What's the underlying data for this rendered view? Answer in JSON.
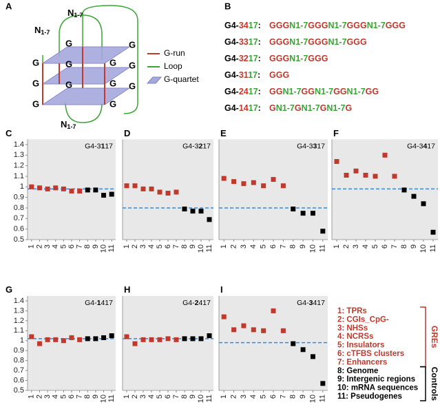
{
  "panel_a": {
    "panel": "A",
    "loops": [
      "N1-7",
      "N1-7",
      "N1-7"
    ],
    "g_labels": [
      "G",
      "G",
      "G",
      "G",
      "G",
      "G",
      "G",
      "G",
      "G",
      "G",
      "G",
      "G"
    ],
    "legend": [
      "G-run",
      "Loop",
      "G-quartet"
    ]
  },
  "panel_b": {
    "panel": "B",
    "lines": [
      {
        "label": "G4-3417:",
        "sequence": "GGGN1-7GGGN1-7GGGN1-7GGG"
      },
      {
        "label": "G4-3317:",
        "sequence": "GGGN1-7GGGN1-7GGG"
      },
      {
        "label": "G4-3217:",
        "sequence": "GGGN1-7GGG"
      },
      {
        "label": "G4-3117:",
        "sequence": "GGG"
      },
      {
        "label": "G4-2417:",
        "sequence": "GGN1-7GGN1-7GGN1-7GG"
      },
      {
        "label": "G4-1417:",
        "sequence": "GN1-7GN1-7GN1-7G"
      }
    ]
  },
  "chart_data": [
    {
      "type": "scatter",
      "panel": "C",
      "title": [
        "G4-3",
        "1",
        "17"
      ],
      "categories": [
        "1",
        "2",
        "3",
        "4",
        "5",
        "6",
        "7",
        "8",
        "9",
        "10",
        "11"
      ],
      "values": [
        1.0,
        0.99,
        0.98,
        0.99,
        0.98,
        0.96,
        0.96,
        0.97,
        0.97,
        0.92,
        0.93
      ],
      "reference": 0.98,
      "ylim": [
        0.5,
        1.45
      ],
      "yticks": [
        0.5,
        0.6,
        0.7,
        0.8,
        0.9,
        1,
        1.1,
        1.2,
        1.3,
        1.4
      ]
    },
    {
      "type": "scatter",
      "panel": "D",
      "title": [
        "G4-3",
        "2",
        "17"
      ],
      "categories": [
        "1",
        "2",
        "3",
        "4",
        "5",
        "6",
        "7",
        "8",
        "9",
        "10",
        "11"
      ],
      "values": [
        1.01,
        1.01,
        0.98,
        0.98,
        0.95,
        0.94,
        0.95,
        0.79,
        0.77,
        0.77,
        0.69
      ],
      "reference": 0.8,
      "ylim": [
        0.5,
        1.45
      ]
    },
    {
      "type": "scatter",
      "panel": "E",
      "title": [
        "G4-3",
        "3",
        "17"
      ],
      "categories": [
        "1",
        "2",
        "3",
        "4",
        "5",
        "6",
        "7",
        "8",
        "9",
        "10",
        "11"
      ],
      "values": [
        1.08,
        1.05,
        1.03,
        1.04,
        1.01,
        1.07,
        1.01,
        0.79,
        0.75,
        0.75,
        0.58
      ],
      "reference": 0.8,
      "ylim": [
        0.5,
        1.45
      ]
    },
    {
      "type": "scatter",
      "panel": "F",
      "title": [
        "G4-3",
        "4",
        "17"
      ],
      "categories": [
        "1",
        "2",
        "3",
        "4",
        "5",
        "6",
        "7",
        "8",
        "9",
        "10",
        "11"
      ],
      "values": [
        1.24,
        1.11,
        1.15,
        1.11,
        1.1,
        1.3,
        1.1,
        0.97,
        0.91,
        0.84,
        0.57
      ],
      "reference": 0.98,
      "ylim": [
        0.5,
        1.45
      ]
    },
    {
      "type": "scatter",
      "panel": "G",
      "title": [
        "G4-",
        "1",
        "417"
      ],
      "categories": [
        "1",
        "2",
        "3",
        "4",
        "5",
        "6",
        "7",
        "8",
        "9",
        "10",
        "11"
      ],
      "values": [
        1.04,
        0.97,
        1.01,
        1.01,
        1.0,
        1.03,
        1.01,
        1.02,
        1.02,
        1.03,
        1.05
      ],
      "reference": 1.02,
      "ylim": [
        0.5,
        1.45
      ],
      "yticks": [
        0.5,
        0.6,
        0.7,
        0.8,
        0.9,
        1,
        1.1,
        1.2,
        1.3,
        1.4
      ]
    },
    {
      "type": "scatter",
      "panel": "H",
      "title": [
        "G4-",
        "2",
        "417"
      ],
      "categories": [
        "1",
        "2",
        "3",
        "4",
        "5",
        "6",
        "7",
        "8",
        "9",
        "10",
        "11"
      ],
      "values": [
        1.04,
        0.97,
        1.01,
        1.01,
        1.01,
        1.02,
        1.01,
        1.02,
        1.02,
        1.02,
        1.05
      ],
      "reference": 1.02,
      "ylim": [
        0.5,
        1.45
      ]
    },
    {
      "type": "scatter",
      "panel": "I",
      "title": [
        "G4-",
        "3",
        "417"
      ],
      "categories": [
        "1",
        "2",
        "3",
        "4",
        "5",
        "6",
        "7",
        "8",
        "9",
        "10",
        "11"
      ],
      "values": [
        1.24,
        1.11,
        1.15,
        1.11,
        1.1,
        1.3,
        1.1,
        0.97,
        0.91,
        0.84,
        0.57
      ],
      "reference": 0.98,
      "ylim": [
        0.5,
        1.45
      ]
    }
  ],
  "legend": {
    "groups": [
      {
        "name": "GREs",
        "color": "#c0392b",
        "items": [
          "1: TPRs",
          "2: CGIs_CpG-",
          "3: NHSs",
          "4: NCRSs",
          "5: Insulators",
          "6: cTFBS clusters",
          "7: Enhancers"
        ]
      },
      {
        "name": "Controls",
        "color": "#000000",
        "items": [
          "8: Genome",
          "9: Intergenic regions",
          "10: mRNA sequences",
          "11: Pseudogenes"
        ]
      }
    ]
  }
}
